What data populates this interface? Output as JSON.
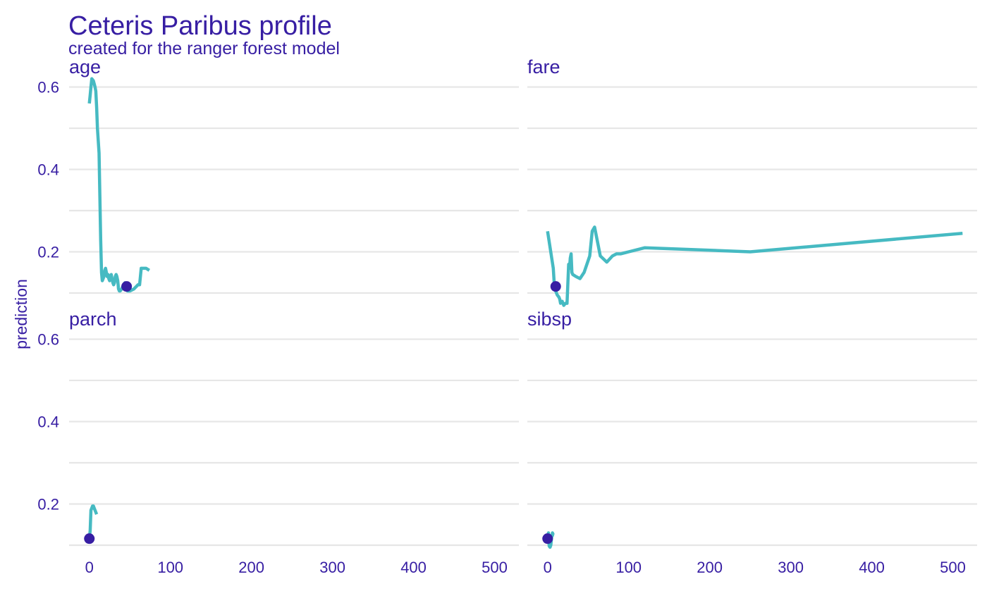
{
  "chart_data": {
    "type": "line",
    "title": "Ceteris Paribus profile",
    "subtitle": "created for the ranger forest model",
    "ylabel": "prediction",
    "ylim": [
      0.1,
      0.63
    ],
    "y_ticks": [
      0.2,
      0.4,
      0.6
    ],
    "y_tick_labels": [
      "0.2",
      "0.4",
      "0.6"
    ],
    "y_minor_ticks": [
      0.1,
      0.3,
      0.5
    ],
    "xlim": [
      -25,
      530
    ],
    "x_ticks": [
      0,
      100,
      200,
      300,
      400,
      500
    ],
    "x_tick_labels": [
      "0",
      "100",
      "200",
      "300",
      "400",
      "500"
    ],
    "line_color": "#46bac2",
    "point_color": "#371ea3",
    "panels": [
      {
        "variable": "age",
        "observation": {
          "x": 46,
          "y": 0.116
        },
        "profile": {
          "x": [
            0,
            1,
            2,
            3,
            5,
            7,
            8,
            9,
            10,
            12,
            14,
            15,
            16,
            17,
            18,
            19,
            20,
            21,
            22,
            23,
            24,
            25,
            26,
            27,
            28,
            29,
            30,
            31,
            32,
            33,
            34,
            35,
            36,
            37,
            38,
            40,
            42,
            44,
            45,
            47,
            50,
            55,
            60,
            62,
            64,
            70,
            74
          ],
          "y": [
            0.56,
            0.58,
            0.6,
            0.62,
            0.615,
            0.6,
            0.59,
            0.55,
            0.5,
            0.44,
            0.23,
            0.15,
            0.13,
            0.135,
            0.14,
            0.155,
            0.16,
            0.15,
            0.14,
            0.145,
            0.135,
            0.13,
            0.14,
            0.145,
            0.135,
            0.125,
            0.12,
            0.125,
            0.14,
            0.145,
            0.14,
            0.13,
            0.11,
            0.105,
            0.105,
            0.11,
            0.12,
            0.125,
            0.11,
            0.105,
            0.105,
            0.11,
            0.12,
            0.12,
            0.16,
            0.16,
            0.155
          ]
        }
      },
      {
        "variable": "fare",
        "observation": {
          "x": 10,
          "y": 0.116
        },
        "profile": {
          "x": [
            0,
            7,
            8,
            9,
            10,
            12,
            14,
            15,
            16,
            18,
            20,
            22,
            24,
            26,
            27,
            28,
            29,
            30,
            31,
            35,
            40,
            45,
            52,
            55,
            58,
            65,
            73,
            80,
            85,
            90,
            100,
            120,
            250,
            512
          ],
          "y": [
            0.25,
            0.16,
            0.13,
            0.11,
            0.105,
            0.095,
            0.09,
            0.085,
            0.075,
            0.08,
            0.07,
            0.075,
            0.075,
            0.17,
            0.16,
            0.185,
            0.195,
            0.15,
            0.145,
            0.14,
            0.135,
            0.15,
            0.19,
            0.25,
            0.26,
            0.19,
            0.175,
            0.19,
            0.195,
            0.195,
            0.2,
            0.21,
            0.2,
            0.245
          ]
        }
      },
      {
        "variable": "parch",
        "observation": {
          "x": 0,
          "y": 0.116
        },
        "profile": {
          "x": [
            0,
            1,
            2,
            3,
            4,
            5,
            6,
            7,
            8,
            9
          ],
          "y": [
            0.116,
            0.135,
            0.185,
            0.19,
            0.195,
            0.195,
            0.19,
            0.185,
            0.18,
            0.175
          ]
        }
      },
      {
        "variable": "sibsp",
        "observation": {
          "x": 0,
          "y": 0.116
        },
        "profile": {
          "x": [
            0,
            1,
            2,
            3,
            4,
            5,
            6,
            7,
            8
          ],
          "y": [
            0.116,
            0.13,
            0.098,
            0.095,
            0.1,
            0.12,
            0.13,
            0.125,
            0.125
          ]
        }
      }
    ]
  }
}
